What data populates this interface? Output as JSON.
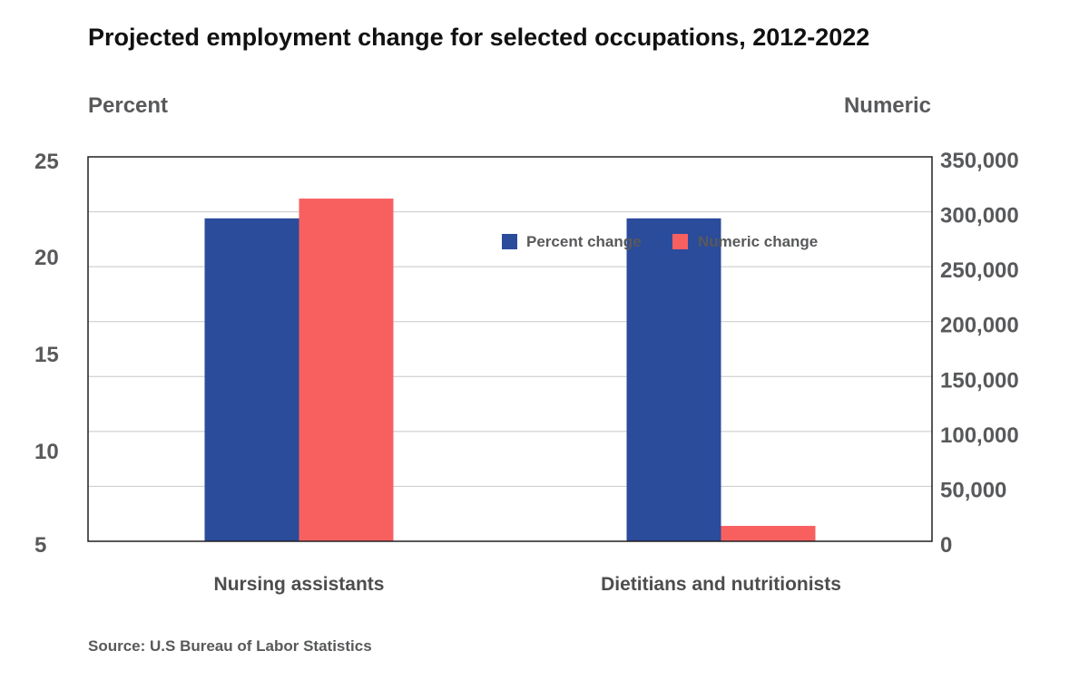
{
  "title": "Projected employment change for selected occupations, 2012-2022",
  "source": "Source: U.S Bureau of Labor Statistics",
  "chart_data": {
    "type": "bar",
    "title": "Projected employment change for selected occupations, 2012-2022",
    "categories": [
      "Nursing assistants",
      "Dietitians and nutritionists"
    ],
    "series": [
      {
        "name": "Percent change",
        "axis": "left",
        "color": "#2b4b9b",
        "values": [
          21,
          21
        ]
      },
      {
        "name": "Numeric change",
        "axis": "right",
        "color": "#f86060",
        "values": [
          312000,
          14000
        ]
      }
    ],
    "y_left": {
      "label": "Percent",
      "ylim": [
        0,
        25
      ],
      "ticks": [
        5,
        10,
        15,
        20,
        25
      ],
      "tick_labels": [
        "5",
        "10",
        "15",
        "20",
        "25"
      ]
    },
    "y_right": {
      "label": "Numeric",
      "ylim": [
        0,
        350000
      ],
      "ticks": [
        0,
        50000,
        100000,
        150000,
        200000,
        250000,
        300000,
        350000
      ],
      "tick_labels": [
        "0",
        "50,000",
        "100,000",
        "150,000",
        "200,000",
        "250,000",
        "300,000",
        "350,000"
      ]
    },
    "grid": true,
    "legend": {
      "placement": "top-right-inside",
      "entries": [
        "Percent change",
        "Numeric change"
      ]
    }
  }
}
